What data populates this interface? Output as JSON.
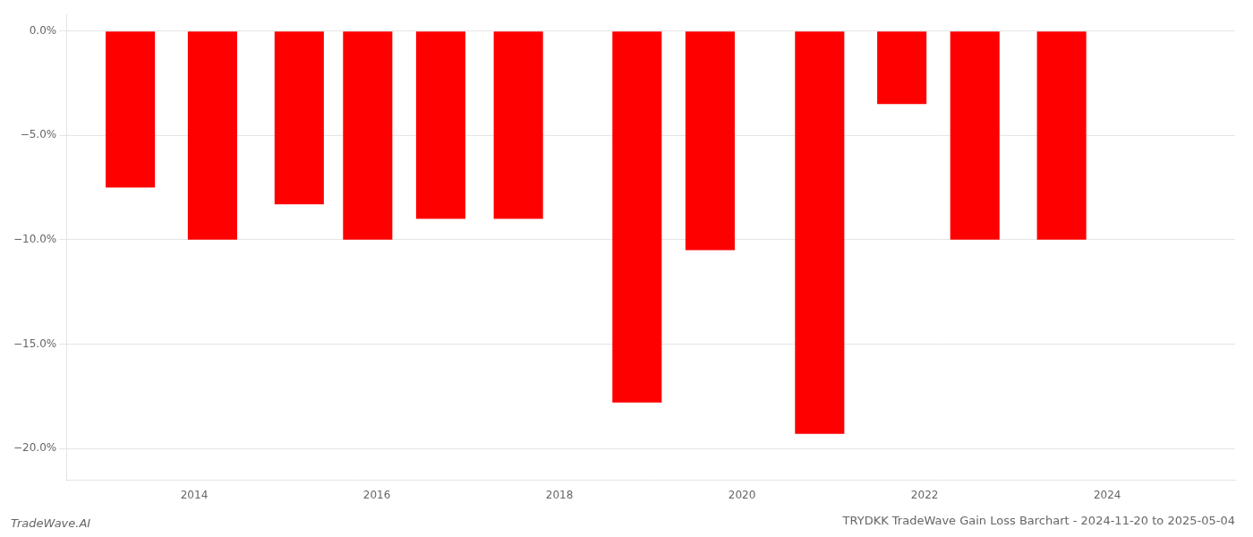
{
  "chart_data": {
    "type": "bar",
    "title": "TRYDKK TradeWave Gain Loss Barchart - 2024-11-20 to 2025-05-04",
    "annotations": [
      "TradeWave.AI"
    ],
    "x": [
      2013.3,
      2014.2,
      2015.15,
      2015.9,
      2016.7,
      2017.55,
      2018.85,
      2019.65,
      2020.85,
      2021.75,
      2022.55,
      2023.5
    ],
    "values": [
      -7.5,
      -10.0,
      -8.3,
      -10.0,
      -9.0,
      -9.0,
      -17.8,
      -10.5,
      -19.3,
      -3.5,
      -10.0,
      -10.0
    ],
    "color": "#ff0000",
    "xlim": [
      2012.6,
      2025.4
    ],
    "xticks": [
      2014,
      2016,
      2018,
      2020,
      2022,
      2024
    ],
    "ylim": [
      -21.5,
      0.8
    ],
    "yticks": [
      {
        "value": 0.0,
        "label": "0.0%"
      },
      {
        "value": -5.0,
        "label": "−5.0%"
      },
      {
        "value": -10.0,
        "label": "−10.0%"
      },
      {
        "value": -15.0,
        "label": "−15.0%"
      },
      {
        "value": -20.0,
        "label": "−20.0%"
      }
    ],
    "grid": true
  }
}
